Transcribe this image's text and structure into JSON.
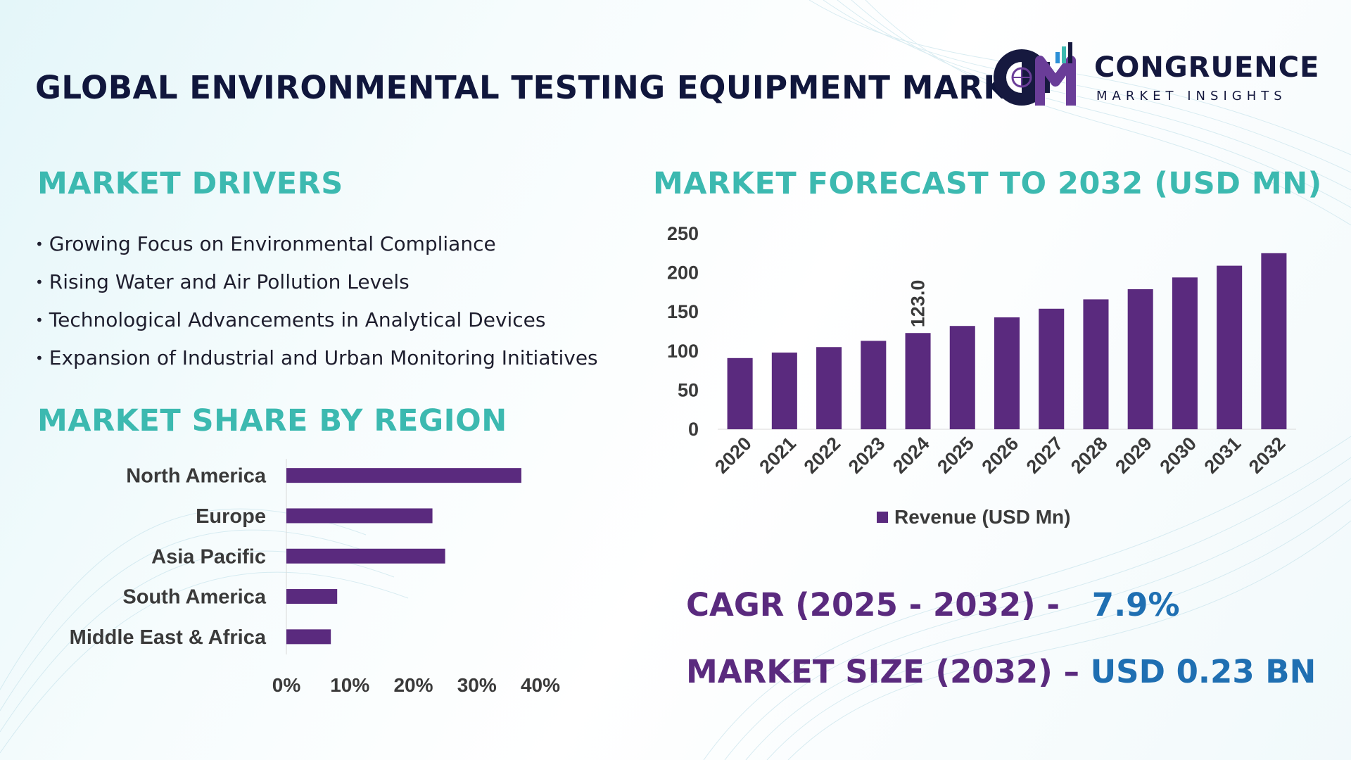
{
  "title": "GLOBAL ENVIRONMENTAL TESTING EQUIPMENT MARKET",
  "logo": {
    "name": "CONGRUENCE",
    "subtitle": "MARKET INSIGHTS"
  },
  "drivers": {
    "title": "MARKET DRIVERS",
    "items": [
      "Growing Focus on Environmental Compliance",
      "Rising Water and Air Pollution Levels",
      "Technological Advancements in Analytical Devices",
      "Expansion of Industrial and Urban Monitoring Initiatives"
    ]
  },
  "region_section_title": "MARKET SHARE BY REGION",
  "forecast_section_title": "MARKET FORECAST TO 2032 (USD MN)",
  "kpis": {
    "cagr_label": "CAGR (2025 - 2032) -",
    "cagr_value": "7.9%",
    "size_label": "MARKET SIZE (2032) –",
    "size_value": "USD 0.23 BN"
  },
  "colors": {
    "bar": "#5a2a7e",
    "title_teal": "#3cb9b0",
    "title_navy": "#10163c",
    "kpi_value": "#1f6fb2"
  },
  "chart_data": [
    {
      "type": "bar",
      "categories": [
        "2020",
        "2021",
        "2022",
        "2023",
        "2024",
        "2025",
        "2026",
        "2027",
        "2028",
        "2029",
        "2030",
        "2031",
        "2032"
      ],
      "series": [
        {
          "name": "Revenue (USD Mn)",
          "values": [
            91,
            98,
            105,
            113,
            123.0,
            132,
            143,
            154,
            166,
            179,
            194,
            209,
            225
          ]
        }
      ],
      "data_labels": [
        {
          "index": 4,
          "text": "123.0"
        }
      ],
      "yticks": [
        "0",
        "50",
        "100",
        "150",
        "200",
        "250"
      ],
      "ylim": [
        0,
        250
      ],
      "grid": false,
      "legend": "bottom"
    },
    {
      "type": "bar",
      "orientation": "horizontal",
      "categories": [
        "North America",
        "Europe",
        "Asia Pacific",
        "South America",
        "Middle East & Africa"
      ],
      "values": [
        37,
        23,
        25,
        8,
        7
      ],
      "xticks": [
        "0%",
        "10%",
        "20%",
        "30%",
        "40%"
      ],
      "xlim": [
        0,
        40
      ],
      "grid": false
    }
  ]
}
